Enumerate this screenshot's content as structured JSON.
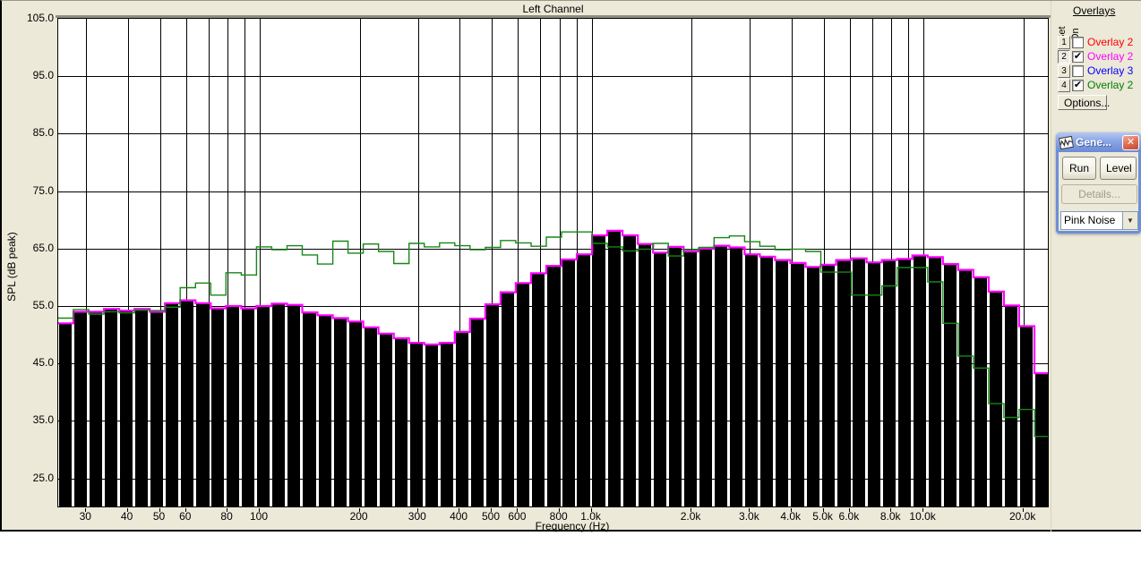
{
  "chart": {
    "title": "Left Channel",
    "y_axis": {
      "label": "SPL (dB peak)",
      "ticks": [
        "105.0",
        "95.0",
        "85.0",
        "75.0",
        "65.0",
        "55.0",
        "45.0",
        "35.0",
        "25.0"
      ]
    },
    "x_axis": {
      "label": "Frequency (Hz)",
      "tick_labels": [
        "30",
        "40",
        "50",
        "60",
        "80",
        "100",
        "200",
        "300",
        "400",
        "500",
        "600",
        "800",
        "1.0k",
        "2.0k",
        "3.0k",
        "4.0k",
        "5.0k",
        "6.0k",
        "8.0k",
        "10.0k",
        "20.0k"
      ],
      "tick_hz": [
        30,
        40,
        50,
        60,
        80,
        100,
        200,
        300,
        400,
        500,
        600,
        800,
        1000,
        2000,
        3000,
        4000,
        5000,
        6000,
        8000,
        10000,
        20000
      ],
      "gridline_hz": [
        30,
        40,
        50,
        60,
        70,
        80,
        90,
        100,
        200,
        300,
        400,
        500,
        600,
        700,
        800,
        900,
        1000,
        2000,
        3000,
        4000,
        5000,
        6000,
        7000,
        8000,
        9000,
        10000,
        20000
      ]
    }
  },
  "chart_data": {
    "type": "bar",
    "title": "Left Channel",
    "xlabel": "Frequency (Hz)",
    "ylabel": "SPL (dB peak)",
    "x_scale": "log",
    "xlim_hz": [
      24.7,
      24000
    ],
    "ylim": [
      19.8,
      105
    ],
    "grid": true,
    "bands_hz": [
      25,
      28,
      31,
      35,
      39,
      43,
      48,
      53,
      59,
      65,
      73,
      81,
      90,
      100,
      111,
      123,
      137,
      152,
      169,
      188,
      209,
      233,
      259,
      287,
      319,
      355,
      394,
      438,
      487,
      541,
      602,
      669,
      743,
      826,
      918,
      1020,
      1134,
      1261,
      1401,
      1557,
      1731,
      1923,
      2138,
      2376,
      2641,
      2935,
      3262,
      3626,
      4030,
      4479,
      4978,
      5533,
      6149,
      6834,
      7596,
      8442,
      9383,
      10429,
      11591,
      12883,
      14318,
      15914,
      17688,
      19659,
      21850
    ],
    "series": [
      {
        "name": "rta-bars-current",
        "type": "bar",
        "values": [
          52.0,
          54.0,
          54.0,
          54.5,
          54.2,
          54.5,
          54.0,
          55.5,
          56.0,
          55.5,
          54.6,
          55.0,
          54.6,
          55.0,
          55.4,
          55.2,
          53.9,
          53.4,
          52.9,
          52.3,
          51.3,
          50.2,
          49.4,
          48.6,
          48.3,
          48.6,
          50.5,
          52.8,
          55.3,
          57.4,
          59.0,
          60.7,
          62.0,
          63.1,
          64.0,
          67.3,
          68.1,
          67.3,
          65.8,
          64.3,
          65.3,
          64.5,
          65.0,
          65.5,
          65.2,
          64.0,
          63.6,
          63.0,
          62.5,
          61.8,
          62.2,
          63.0,
          63.3,
          62.6,
          63.0,
          63.2,
          63.8,
          63.5,
          62.3,
          61.3,
          60.0,
          57.5,
          55.1,
          51.5,
          43.3
        ]
      },
      {
        "name": "overlay-magenta-trace",
        "type": "step-line",
        "values": [
          52.0,
          54.0,
          54.0,
          54.5,
          54.2,
          54.5,
          54.0,
          55.5,
          56.0,
          55.5,
          54.6,
          55.0,
          54.6,
          55.0,
          55.4,
          55.2,
          53.9,
          53.4,
          52.9,
          52.3,
          51.3,
          50.2,
          49.4,
          48.6,
          48.3,
          48.6,
          50.5,
          52.8,
          55.3,
          57.4,
          59.0,
          60.7,
          62.0,
          63.1,
          64.0,
          67.3,
          68.1,
          67.3,
          65.8,
          64.3,
          65.3,
          64.5,
          65.0,
          65.5,
          65.2,
          64.0,
          63.6,
          63.0,
          62.5,
          61.8,
          62.2,
          63.0,
          63.3,
          62.6,
          63.0,
          63.2,
          63.8,
          63.5,
          62.3,
          61.3,
          60.0,
          57.5,
          55.1,
          51.5,
          43.3
        ]
      },
      {
        "name": "overlay-green-trace",
        "type": "step-line",
        "values": [
          52.9,
          54.4,
          53.6,
          54.0,
          53.8,
          54.3,
          54.2,
          54.8,
          58.2,
          59.0,
          56.9,
          60.8,
          60.4,
          65.3,
          64.8,
          65.5,
          63.9,
          62.3,
          66.3,
          64.2,
          65.8,
          64.5,
          62.4,
          65.9,
          65.3,
          66.0,
          65.5,
          64.8,
          65.2,
          66.4,
          66.0,
          65.4,
          67.0,
          67.9,
          67.9,
          65.9,
          65.3,
          64.6,
          64.9,
          65.9,
          63.7,
          64.8,
          65.2,
          66.9,
          67.2,
          66.2,
          65.4,
          64.8,
          64.9,
          64.5,
          60.9,
          60.9,
          56.9,
          56.9,
          58.5,
          61.7,
          61.7,
          59.2,
          52.0,
          46.3,
          44.2,
          38.0,
          35.6,
          37.0,
          32.3
        ]
      }
    ],
    "colors": {
      "bar_fill": "#000000",
      "bar_cap_magenta": "#ff00ff",
      "overlay_green": "#168716",
      "plot_bg": "#ffffff",
      "panel_bg": "#ece9d8"
    }
  },
  "overlays_panel": {
    "title": "Overlays",
    "col_set": "Set",
    "col_on": "On",
    "rows": [
      {
        "num": "1",
        "checked": false,
        "label": "Overlay 2",
        "color": "#ff0000"
      },
      {
        "num": "2",
        "checked": true,
        "label": "Overlay 2",
        "color": "#ff00ff",
        "pressed": true
      },
      {
        "num": "3",
        "checked": false,
        "label": "Overlay 3",
        "color": "#0000ff"
      },
      {
        "num": "4",
        "checked": true,
        "label": "Overlay 2",
        "color": "#008000"
      }
    ],
    "options_label": "Options...",
    "check_glyph": "✔"
  },
  "generator_window": {
    "title": "Gene...",
    "close_glyph": "✕",
    "run_label": "Run",
    "level_label": "Level",
    "details_label": "Details...",
    "signal_select": {
      "value": "Pink Noise",
      "arrow_glyph": "▼"
    }
  }
}
